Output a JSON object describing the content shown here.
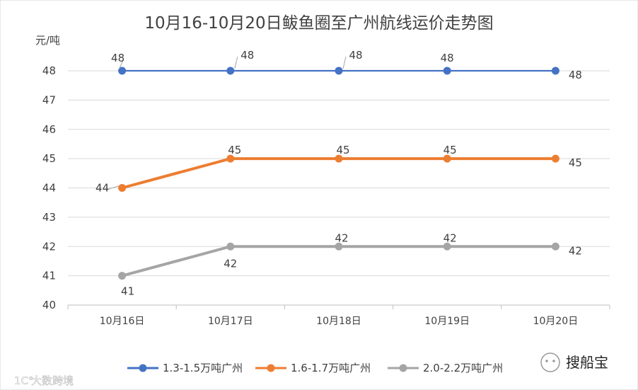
{
  "chart_data": {
    "type": "line",
    "title": "10月16-10月20日鲅鱼圈至广州航线运价走势图",
    "ylabel": "元/吨",
    "xlabel": "",
    "categories": [
      "10月16日",
      "10月17日",
      "10月18日",
      "10月19日",
      "10月20日"
    ],
    "ylim": [
      40,
      48
    ],
    "yticks": [
      40,
      41,
      42,
      43,
      44,
      45,
      46,
      47,
      48
    ],
    "grid": true,
    "legend_position": "bottom",
    "series": [
      {
        "name": "1.3-1.5万吨广州",
        "color": "#4472c4",
        "values": [
          48,
          48,
          48,
          48,
          48
        ]
      },
      {
        "name": "1.6-1.7万吨广州",
        "color": "#ed7d31",
        "values": [
          44,
          45,
          45,
          45,
          45
        ]
      },
      {
        "name": "2.0-2.2万吨广州",
        "color": "#a5a5a5",
        "values": [
          41,
          42,
          42,
          42,
          42
        ]
      }
    ]
  },
  "watermarks": {
    "right": "搜船宝",
    "left": "大数跨境"
  },
  "colors": {
    "grid": "#d9d9d9",
    "axis": "#bfbfbf",
    "text": "#404040"
  }
}
